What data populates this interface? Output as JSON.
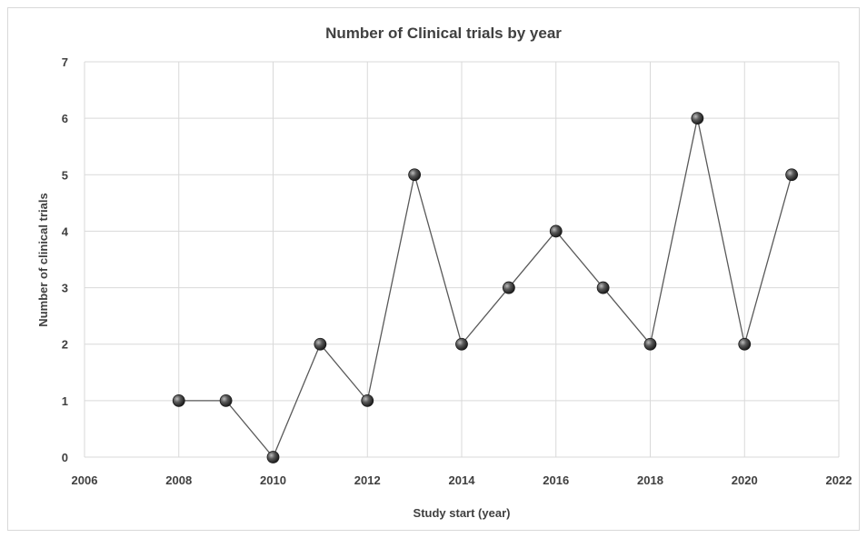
{
  "chart_data": {
    "type": "scatter",
    "title": "Number of Clinical trials by year",
    "xlabel": "Study start (year)",
    "ylabel": "Number of clinical trials",
    "xlim": [
      2006,
      2022
    ],
    "ylim": [
      0,
      7
    ],
    "x_ticks": [
      "2006",
      "2008",
      "2010",
      "2012",
      "2014",
      "2016",
      "2018",
      "2020",
      "2022"
    ],
    "y_ticks": [
      "0",
      "1",
      "2",
      "3",
      "4",
      "5",
      "6",
      "7"
    ],
    "grid": true,
    "legend": "none",
    "marker_color": "#3a3a3a",
    "line_color": "#595959",
    "series": [
      {
        "x": [
          2008,
          2009,
          2010,
          2011,
          2012,
          2013,
          2014,
          2015,
          2016,
          2017,
          2018,
          2019,
          2020,
          2021
        ],
        "y": [
          1,
          1,
          0,
          2,
          1,
          5,
          2,
          3,
          4,
          3,
          2,
          6,
          2,
          5
        ]
      }
    ]
  }
}
